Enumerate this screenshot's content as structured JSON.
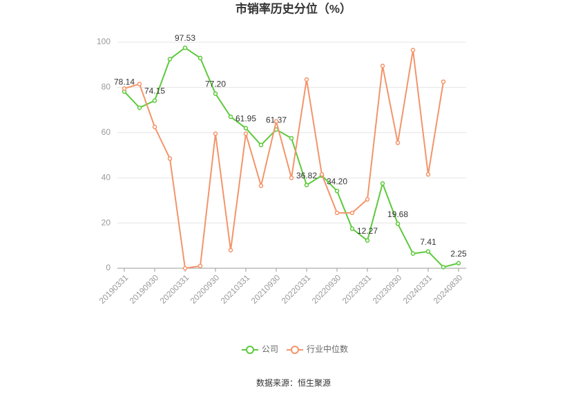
{
  "chart_data": {
    "type": "line",
    "title": "市销率历史分位（%）",
    "categories": [
      "20190331",
      null,
      "20190930",
      null,
      "20200331",
      null,
      "20200930",
      null,
      "20210331",
      null,
      "20210930",
      null,
      "20220331",
      null,
      "20220930",
      null,
      "20230331",
      null,
      "20230930",
      null,
      "20240331",
      null,
      "20240830"
    ],
    "series": [
      {
        "name": "公司",
        "color": "#5cc93a",
        "values": [
          78.14,
          71,
          74.15,
          92.5,
          97.53,
          93,
          77.2,
          67,
          61.95,
          54.5,
          61.37,
          57.5,
          36.82,
          41,
          34.2,
          17.5,
          12.27,
          37.5,
          19.68,
          6.5,
          7.41,
          0.5,
          2.25
        ],
        "value_labels": [
          "78.14",
          null,
          "74.15",
          null,
          "97.53",
          null,
          "77.20",
          null,
          "61.95",
          null,
          "61.37",
          null,
          "36.82",
          null,
          "34.20",
          null,
          "12.27",
          null,
          "19.68",
          null,
          "7.41",
          null,
          "2.25"
        ]
      },
      {
        "name": "行业中位数",
        "color": "#f39469",
        "values": [
          79.5,
          81.5,
          62.5,
          48.5,
          0,
          1,
          59.5,
          8,
          59.5,
          36.5,
          65,
          40,
          83.5,
          41.5,
          24.5,
          24.5,
          30.5,
          89.5,
          55.5,
          96.5,
          41.5,
          82.5,
          null
        ]
      }
    ],
    "ylim": [
      0,
      100
    ],
    "yticks": [
      0,
      20,
      40,
      60,
      80,
      100
    ],
    "grid": true,
    "legend": "bottom",
    "source": "数据来源：恒生聚源"
  }
}
